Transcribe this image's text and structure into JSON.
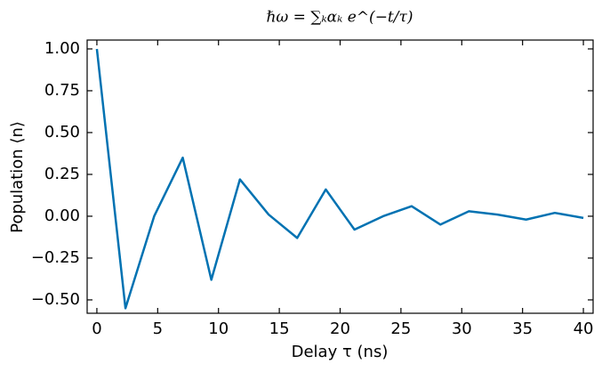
{
  "chart_data": {
    "type": "line",
    "title": "ℏω = ∑ₖαₖ e^(−t/τ)",
    "x_label": "Delay τ (ns)",
    "y_label": "Population ⟨n⟩",
    "x": [
      0,
      2.35,
      4.71,
      7.06,
      9.41,
      11.76,
      14.12,
      16.47,
      18.82,
      21.18,
      23.53,
      25.88,
      28.24,
      30.59,
      32.94,
      35.29,
      37.65,
      40
    ],
    "series": [
      {
        "color": "#0072b2",
        "values": [
          1.0,
          -0.55,
          0.0,
          0.35,
          -0.38,
          0.22,
          0.01,
          -0.13,
          0.16,
          -0.08,
          0.0,
          0.06,
          -0.05,
          0.03,
          0.01,
          -0.02,
          0.02,
          -0.01
        ]
      }
    ],
    "xlim": [
      -0.8,
      40.8
    ],
    "ylim": [
      -0.58,
      1.053
    ],
    "xticks": [
      0,
      5,
      10,
      15,
      20,
      25,
      30,
      35,
      40
    ],
    "yticks": [
      {
        "value": -0.5,
        "label": "−0.50"
      },
      {
        "value": -0.25,
        "label": "−0.25"
      },
      {
        "value": 0,
        "label": "0.00"
      },
      {
        "value": 0.25,
        "label": "0.25"
      },
      {
        "value": 0.5,
        "label": "0.50"
      },
      {
        "value": 0.75,
        "label": "0.75"
      },
      {
        "value": 1,
        "label": "1.00"
      }
    ],
    "grid": false
  }
}
